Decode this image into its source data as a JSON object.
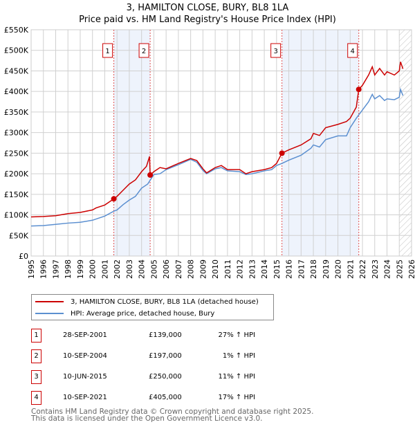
{
  "chart_data": {
    "type": "line",
    "title": "3, HAMILTON CLOSE, BURY, BL8 1LA",
    "subtitle": "Price paid vs. HM Land Registry's House Price Index (HPI)",
    "xlim": [
      1995,
      2026
    ],
    "ylim": [
      0,
      550000
    ],
    "x_ticks": [
      "1995",
      "1996",
      "1997",
      "1998",
      "1999",
      "2000",
      "2001",
      "2002",
      "2003",
      "2004",
      "2005",
      "2006",
      "2007",
      "2008",
      "2009",
      "2010",
      "2011",
      "2012",
      "2013",
      "2014",
      "2015",
      "2016",
      "2017",
      "2018",
      "2019",
      "2020",
      "2021",
      "2022",
      "2023",
      "2024",
      "2025",
      "2026"
    ],
    "y_ticks": [
      "£0",
      "£50K",
      "£100K",
      "£150K",
      "£200K",
      "£250K",
      "£300K",
      "£350K",
      "£400K",
      "£450K",
      "£500K",
      "£550K"
    ],
    "grid": true,
    "series": [
      {
        "name": "3, HAMILTON CLOSE, BURY, BL8 1LA (detached house)",
        "color": "#cc0000",
        "x": [
          1995,
          1996,
          1997,
          1998,
          1999,
          2000,
          2000.3,
          2001,
          2001.74,
          2002,
          2002.5,
          2003,
          2003.5,
          2004,
          2004.4,
          2004.65,
          2004.7,
          2005,
          2005.5,
          2006,
          2007,
          2008,
          2008.5,
          2009,
          2009.3,
          2010,
          2010.5,
          2011,
          2012,
          2012.5,
          2013,
          2014,
          2014.6,
          2015,
          2015.44,
          2016,
          2017,
          2017.8,
          2018,
          2018.5,
          2019,
          2020,
          2020.7,
          2021,
          2021.5,
          2021.7,
          2022,
          2022.5,
          2022.8,
          2023,
          2023.4,
          2023.8,
          2024,
          2024.6,
          2025,
          2025.1,
          2025.3
        ],
        "y": [
          95000,
          96000,
          98000,
          103000,
          106000,
          112000,
          117000,
          124000,
          139000,
          145000,
          160000,
          175000,
          185000,
          205000,
          218000,
          242000,
          197000,
          205000,
          215000,
          212000,
          225000,
          237000,
          232000,
          212000,
          202000,
          215000,
          220000,
          210000,
          210000,
          200000,
          205000,
          210000,
          215000,
          225000,
          250000,
          258000,
          270000,
          285000,
          298000,
          293000,
          312000,
          320000,
          327000,
          335000,
          362000,
          405000,
          415000,
          440000,
          460000,
          440000,
          456000,
          440000,
          448000,
          440000,
          450000,
          472000,
          455000
        ]
      },
      {
        "name": "HPI: Average price, detached house, Bury",
        "color": "#5b8fd0",
        "x": [
          1995,
          1996,
          1997,
          1998,
          1999,
          2000,
          2001,
          2001.74,
          2002,
          2002.5,
          2003,
          2003.5,
          2004,
          2004.5,
          2005,
          2005.5,
          2006,
          2007,
          2008,
          2008.5,
          2009,
          2009.3,
          2010,
          2010.5,
          2011,
          2012,
          2012.5,
          2013,
          2014,
          2014.6,
          2015,
          2015.44,
          2016,
          2017,
          2017.8,
          2018,
          2018.5,
          2019,
          2020,
          2020.7,
          2021,
          2021.5,
          2022,
          2022.5,
          2022.8,
          2023,
          2023.4,
          2023.8,
          2024,
          2024.6,
          2025,
          2025.1,
          2025.3
        ],
        "y": [
          73000,
          74000,
          77000,
          80000,
          82000,
          87000,
          97000,
          109000,
          112000,
          125000,
          136000,
          145000,
          165000,
          175000,
          198000,
          200000,
          210000,
          222000,
          235000,
          228000,
          208000,
          200000,
          212000,
          215000,
          207000,
          205000,
          198000,
          200000,
          207000,
          210000,
          220000,
          225000,
          233000,
          245000,
          262000,
          270000,
          265000,
          283000,
          292000,
          292000,
          312000,
          335000,
          355000,
          375000,
          393000,
          382000,
          390000,
          378000,
          382000,
          380000,
          386000,
          405000,
          390000
        ]
      }
    ],
    "sales": [
      {
        "label": "1",
        "x": 2001.74,
        "y": 139000,
        "date": "28-SEP-2001",
        "price": "£139,000",
        "hpi": "27% ↑ HPI"
      },
      {
        "label": "2",
        "x": 2004.7,
        "y": 197000,
        "date": "10-SEP-2004",
        "price": "£197,000",
        "hpi": "1% ↑ HPI"
      },
      {
        "label": "3",
        "x": 2015.44,
        "y": 250000,
        "date": "10-JUN-2015",
        "price": "£250,000",
        "hpi": "11% ↑ HPI"
      },
      {
        "label": "4",
        "x": 2021.7,
        "y": 405000,
        "date": "10-SEP-2021",
        "price": "£405,000",
        "hpi": "17% ↑ HPI"
      }
    ],
    "shaded_ranges": [
      [
        2001.74,
        2004.7
      ],
      [
        2015.44,
        2021.7
      ]
    ],
    "forecast_hatch_from": 2025
  },
  "footer": {
    "line1": "Contains HM Land Registry data © Crown copyright and database right 2025.",
    "line2": "This data is licensed under the Open Government Licence v3.0."
  }
}
